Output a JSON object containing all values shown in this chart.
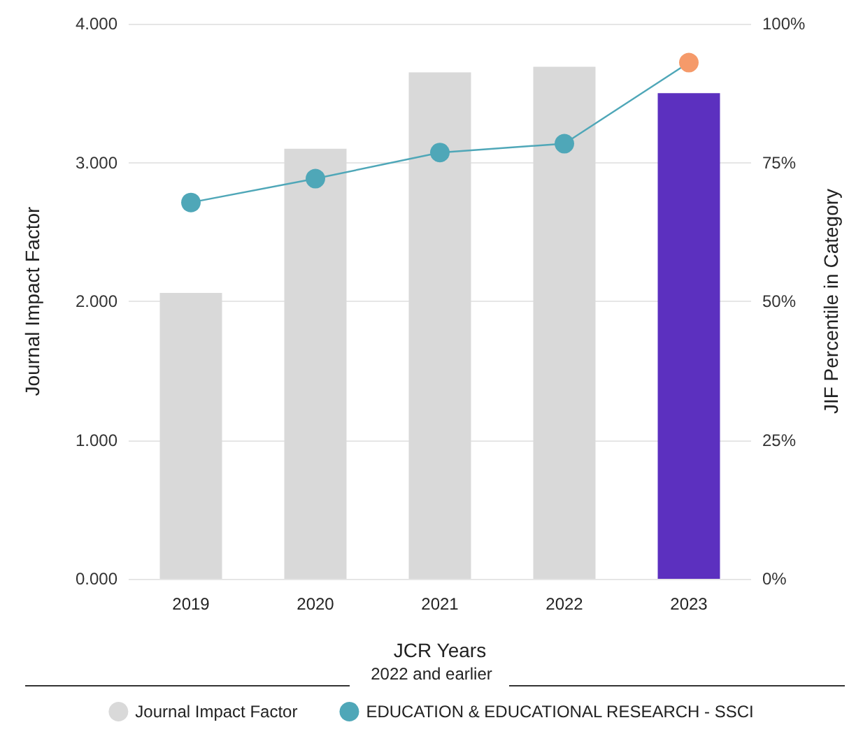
{
  "chart_data": {
    "type": "bar",
    "categories": [
      "2019",
      "2020",
      "2021",
      "2022",
      "2023"
    ],
    "series": [
      {
        "name": "Journal Impact Factor",
        "color": "#d9d9d9",
        "colors": [
          "#d9d9d9",
          "#d9d9d9",
          "#d9d9d9",
          "#d9d9d9",
          "#5c30bf"
        ],
        "values": [
          2.06,
          3.1,
          3.65,
          3.69,
          3.5
        ]
      },
      {
        "name": "EDUCATION & EDUCATIONAL RESEARCH - SSCI",
        "type": "line",
        "axis": "y2",
        "color": "#4fa7b8",
        "colors": [
          "#4fa7b8",
          "#4fa7b8",
          "#4fa7b8",
          "#4fa7b8",
          "#f59a6a"
        ],
        "values": [
          67.8,
          72.1,
          76.8,
          78.4,
          93.0
        ]
      }
    ],
    "xlabel": "JCR Years",
    "ylabel": "Journal Impact Factor",
    "y2label": "JIF Percentile in Category",
    "ylim": [
      0,
      4
    ],
    "yticks": [
      {
        "value": 0,
        "label": "0.000"
      },
      {
        "value": 1,
        "label": "1.000"
      },
      {
        "value": 2,
        "label": "2.000"
      },
      {
        "value": 3,
        "label": "3.000"
      },
      {
        "value": 4,
        "label": "4.000"
      }
    ],
    "y2lim": [
      0,
      100
    ],
    "y2ticks": [
      {
        "value": 0,
        "label": "0%"
      },
      {
        "value": 25,
        "label": "25%"
      },
      {
        "value": 50,
        "label": "50%"
      },
      {
        "value": 75,
        "label": "75%"
      },
      {
        "value": 100,
        "label": "100%"
      }
    ],
    "annotations": [
      "2022 and earlier"
    ],
    "grid": "y",
    "legend": "bottom",
    "marker": "circle",
    "line_style": "solid"
  }
}
